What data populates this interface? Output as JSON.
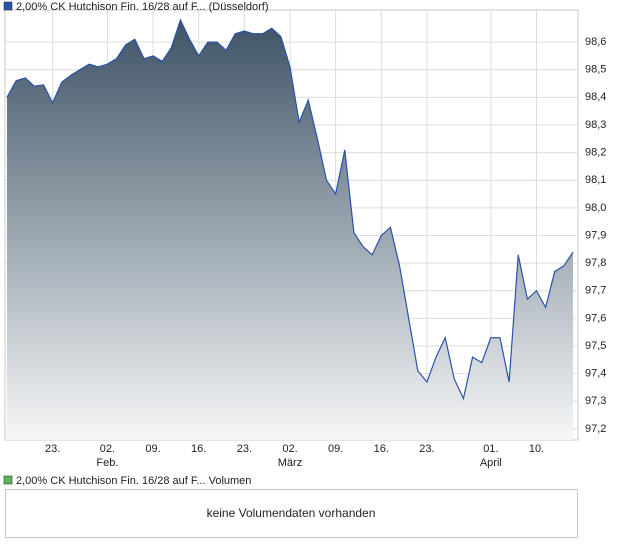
{
  "chart_data": {
    "type": "area",
    "series": [
      {
        "name": "2,00% CK Hutchison Fin. 16/28 auf F... (Düsseldorf)",
        "color": "#2a52a8",
        "values": [
          98.4,
          98.46,
          98.47,
          98.44,
          98.445,
          98.38,
          98.455,
          98.48,
          98.5,
          98.52,
          98.51,
          98.52,
          98.54,
          98.59,
          98.61,
          98.54,
          98.55,
          98.53,
          98.58,
          98.68,
          98.61,
          98.55,
          98.6,
          98.6,
          98.57,
          98.63,
          98.64,
          98.63,
          98.63,
          98.65,
          98.62,
          98.51,
          98.31,
          98.39,
          98.25,
          98.1,
          98.05,
          98.21,
          97.91,
          97.86,
          97.83,
          97.9,
          97.93,
          97.79,
          97.6,
          97.41,
          97.37,
          97.46,
          97.53,
          97.38,
          97.31,
          97.46,
          97.44,
          97.53,
          97.53,
          97.37,
          97.83,
          97.67,
          97.7,
          97.64,
          97.77,
          97.79,
          97.84
        ]
      }
    ],
    "categories": [
      null,
      null,
      null,
      null,
      null,
      "23.",
      null,
      null,
      null,
      null,
      null,
      "02.",
      null,
      null,
      null,
      null,
      "09.",
      null,
      null,
      null,
      null,
      "16.",
      null,
      null,
      null,
      null,
      "23.",
      null,
      null,
      null,
      null,
      "02.",
      null,
      null,
      null,
      null,
      "09.",
      null,
      null,
      null,
      null,
      "16.",
      null,
      null,
      null,
      null,
      "23.",
      null,
      null,
      null,
      null,
      null,
      null,
      "01.",
      null,
      null,
      null,
      null,
      "10.",
      null,
      null,
      null,
      null
    ],
    "month_labels": [
      null,
      null,
      null,
      null,
      null,
      null,
      null,
      null,
      null,
      null,
      null,
      "Feb.",
      null,
      null,
      null,
      null,
      null,
      null,
      null,
      null,
      null,
      null,
      null,
      null,
      null,
      null,
      null,
      null,
      null,
      null,
      null,
      "März",
      null,
      null,
      null,
      null,
      null,
      null,
      null,
      null,
      null,
      null,
      null,
      null,
      null,
      null,
      null,
      null,
      null,
      null,
      null,
      null,
      null,
      "April",
      null,
      null,
      null,
      null,
      null,
      null,
      null,
      null,
      null
    ],
    "ylim": [
      97.16,
      98.716
    ],
    "yticks": [
      {
        "value": 97.2,
        "label": "97,2"
      },
      {
        "value": 97.3,
        "label": "97,3"
      },
      {
        "value": 97.4,
        "label": "97,4"
      },
      {
        "value": 97.5,
        "label": "97,5"
      },
      {
        "value": 97.6,
        "label": "97,6"
      },
      {
        "value": 97.7,
        "label": "97,7"
      },
      {
        "value": 97.8,
        "label": "97,8"
      },
      {
        "value": 97.9,
        "label": "97,9"
      },
      {
        "value": 98.0,
        "label": "98,0"
      },
      {
        "value": 98.1,
        "label": "98,1"
      },
      {
        "value": 98.2,
        "label": "98,2"
      },
      {
        "value": 98.3,
        "label": "98,3"
      },
      {
        "value": 98.4,
        "label": "98,4"
      },
      {
        "value": 98.5,
        "label": "98,5"
      },
      {
        "value": 98.6,
        "label": "98,6"
      }
    ],
    "grid": true
  },
  "volume_panel": {
    "legend": "2,00% CK Hutchison Fin. 16/28 auf F... Volumen",
    "legend_color": "#5cb85c",
    "message": "keine Volumendaten vorhanden"
  }
}
